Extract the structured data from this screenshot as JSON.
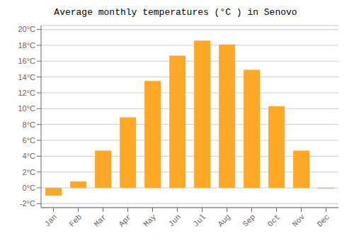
{
  "chart_data": {
    "type": "bar",
    "title": "Average monthly temperatures (°C ) in Senovo",
    "categories": [
      "Jan",
      "Feb",
      "Mar",
      "Apr",
      "May",
      "Jun",
      "Jul",
      "Aug",
      "Sep",
      "Oct",
      "Nov",
      "Dec"
    ],
    "values": [
      -1.0,
      0.8,
      4.7,
      8.9,
      13.5,
      16.7,
      18.6,
      18.1,
      14.9,
      10.3,
      4.7,
      -0.1
    ],
    "color": "#FFA726",
    "ylim": [
      -2.5,
      20.5
    ],
    "yticks": [
      {
        "value": -2,
        "label": "-2°C"
      },
      {
        "value": 0,
        "label": "0°C"
      },
      {
        "value": 2,
        "label": "2°C"
      },
      {
        "value": 4,
        "label": "4°C"
      },
      {
        "value": 6,
        "label": "6°C"
      },
      {
        "value": 8,
        "label": "8°C"
      },
      {
        "value": 10,
        "label": "10°C"
      },
      {
        "value": 12,
        "label": "12°C"
      },
      {
        "value": 14,
        "label": "14°C"
      },
      {
        "value": 16,
        "label": "16°C"
      },
      {
        "value": 18,
        "label": "18°C"
      },
      {
        "value": 20,
        "label": "20°C"
      }
    ],
    "grid": true
  }
}
